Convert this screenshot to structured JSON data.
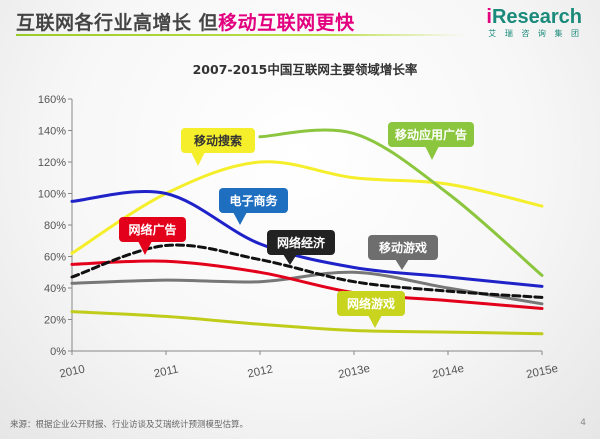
{
  "slide": {
    "title_part1": "互联网各行业高增长 但",
    "title_part2": "移动互联网更快",
    "logo_i": "i",
    "logo_word": "Research",
    "logo_sub": "艾 瑞 咨 询 集 团",
    "footer": "来源：根据企业公开财报、行业访谈及艾瑞统计预测模型估算。",
    "page": "4"
  },
  "chart_data": {
    "type": "line",
    "title": "2007-2015中国互联网主要领域增长率",
    "xlabel": "",
    "ylabel": "",
    "x": [
      "2010",
      "2011",
      "2012",
      "2013e",
      "2014e",
      "2015e"
    ],
    "y_ticks": [
      "0%",
      "20%",
      "40%",
      "60%",
      "80%",
      "100%",
      "120%",
      "140%",
      "160%"
    ],
    "ylim": [
      0,
      160
    ],
    "grid": false,
    "series": [
      {
        "name": "移动搜索",
        "color": "#f5ee2a",
        "dashed": false,
        "values": [
          62,
          100,
          120,
          110,
          106,
          92
        ]
      },
      {
        "name": "移动应用广告",
        "color": "#8cc63f",
        "dashed": false,
        "values": [
          null,
          null,
          136,
          138,
          100,
          48
        ]
      },
      {
        "name": "电子商务",
        "color": "#1e22c8",
        "dashed": false,
        "values": [
          95,
          100,
          68,
          53,
          47,
          41
        ]
      },
      {
        "name": "网络经济",
        "color": "#111111",
        "dashed": true,
        "values": [
          47,
          67,
          58,
          44,
          38,
          34
        ]
      },
      {
        "name": "网络广告",
        "color": "#e3001b",
        "dashed": false,
        "values": [
          55,
          57,
          50,
          37,
          32,
          27
        ]
      },
      {
        "name": "移动游戏",
        "color": "#777777",
        "dashed": false,
        "values": [
          43,
          45,
          44,
          50,
          40,
          30
        ]
      },
      {
        "name": "网络游戏",
        "color": "#c0cc1a",
        "dashed": false,
        "values": [
          25,
          22,
          17,
          13,
          12,
          11
        ]
      }
    ],
    "callouts": [
      {
        "series": "移动搜索",
        "text": "移动搜索",
        "fill": "#f5ee2a",
        "text_color": "#333333"
      },
      {
        "series": "移动应用广告",
        "text": "移动应用广告",
        "fill": "#8cc63f",
        "text_color": "#ffffff"
      },
      {
        "series": "电子商务",
        "text": "电子商务",
        "fill": "#1f6fc1",
        "text_color": "#ffffff"
      },
      {
        "series": "网络经济",
        "text": "网络经济",
        "fill": "#222222",
        "text_color": "#ffffff"
      },
      {
        "series": "网络广告",
        "text": "网络广告",
        "fill": "#e3001b",
        "text_color": "#ffffff"
      },
      {
        "series": "移动游戏",
        "text": "移动游戏",
        "fill": "#6e6e6e",
        "text_color": "#ffffff"
      },
      {
        "series": "网络游戏",
        "text": "网络游戏",
        "fill": "#c8d41e",
        "text_color": "#ffffff"
      }
    ]
  }
}
